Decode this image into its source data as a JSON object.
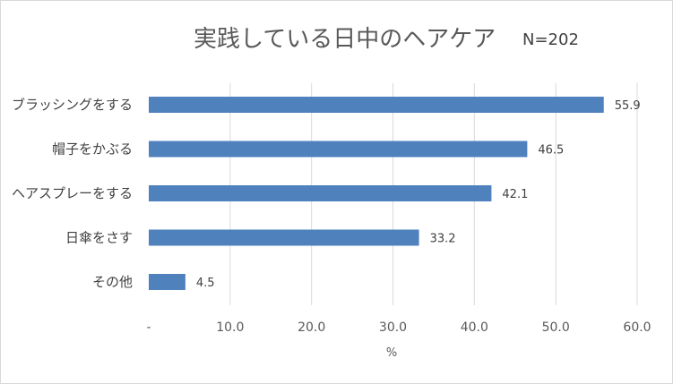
{
  "chart_data": {
    "type": "bar",
    "orientation": "horizontal",
    "title": "実践している日中のヘアケア",
    "sample_size": "N=202",
    "categories": [
      "ブラッシングをする",
      "帽子をかぶる",
      "ヘアスプレーをする",
      "日傘をさす",
      "その他"
    ],
    "values": [
      55.9,
      46.5,
      42.1,
      33.2,
      4.5
    ],
    "value_labels": [
      "55.9",
      "46.5",
      "42.1",
      "33.2",
      "4.5"
    ],
    "xlabel": "%",
    "ylabel": "",
    "xlim": [
      0,
      60
    ],
    "x_ticks": [
      "-",
      "10.0",
      "20.0",
      "30.0",
      "40.0",
      "50.0",
      "60.0"
    ],
    "grid": "vertical",
    "bar_color": "#4f81bd",
    "grid_color": "#d9d9d9"
  }
}
